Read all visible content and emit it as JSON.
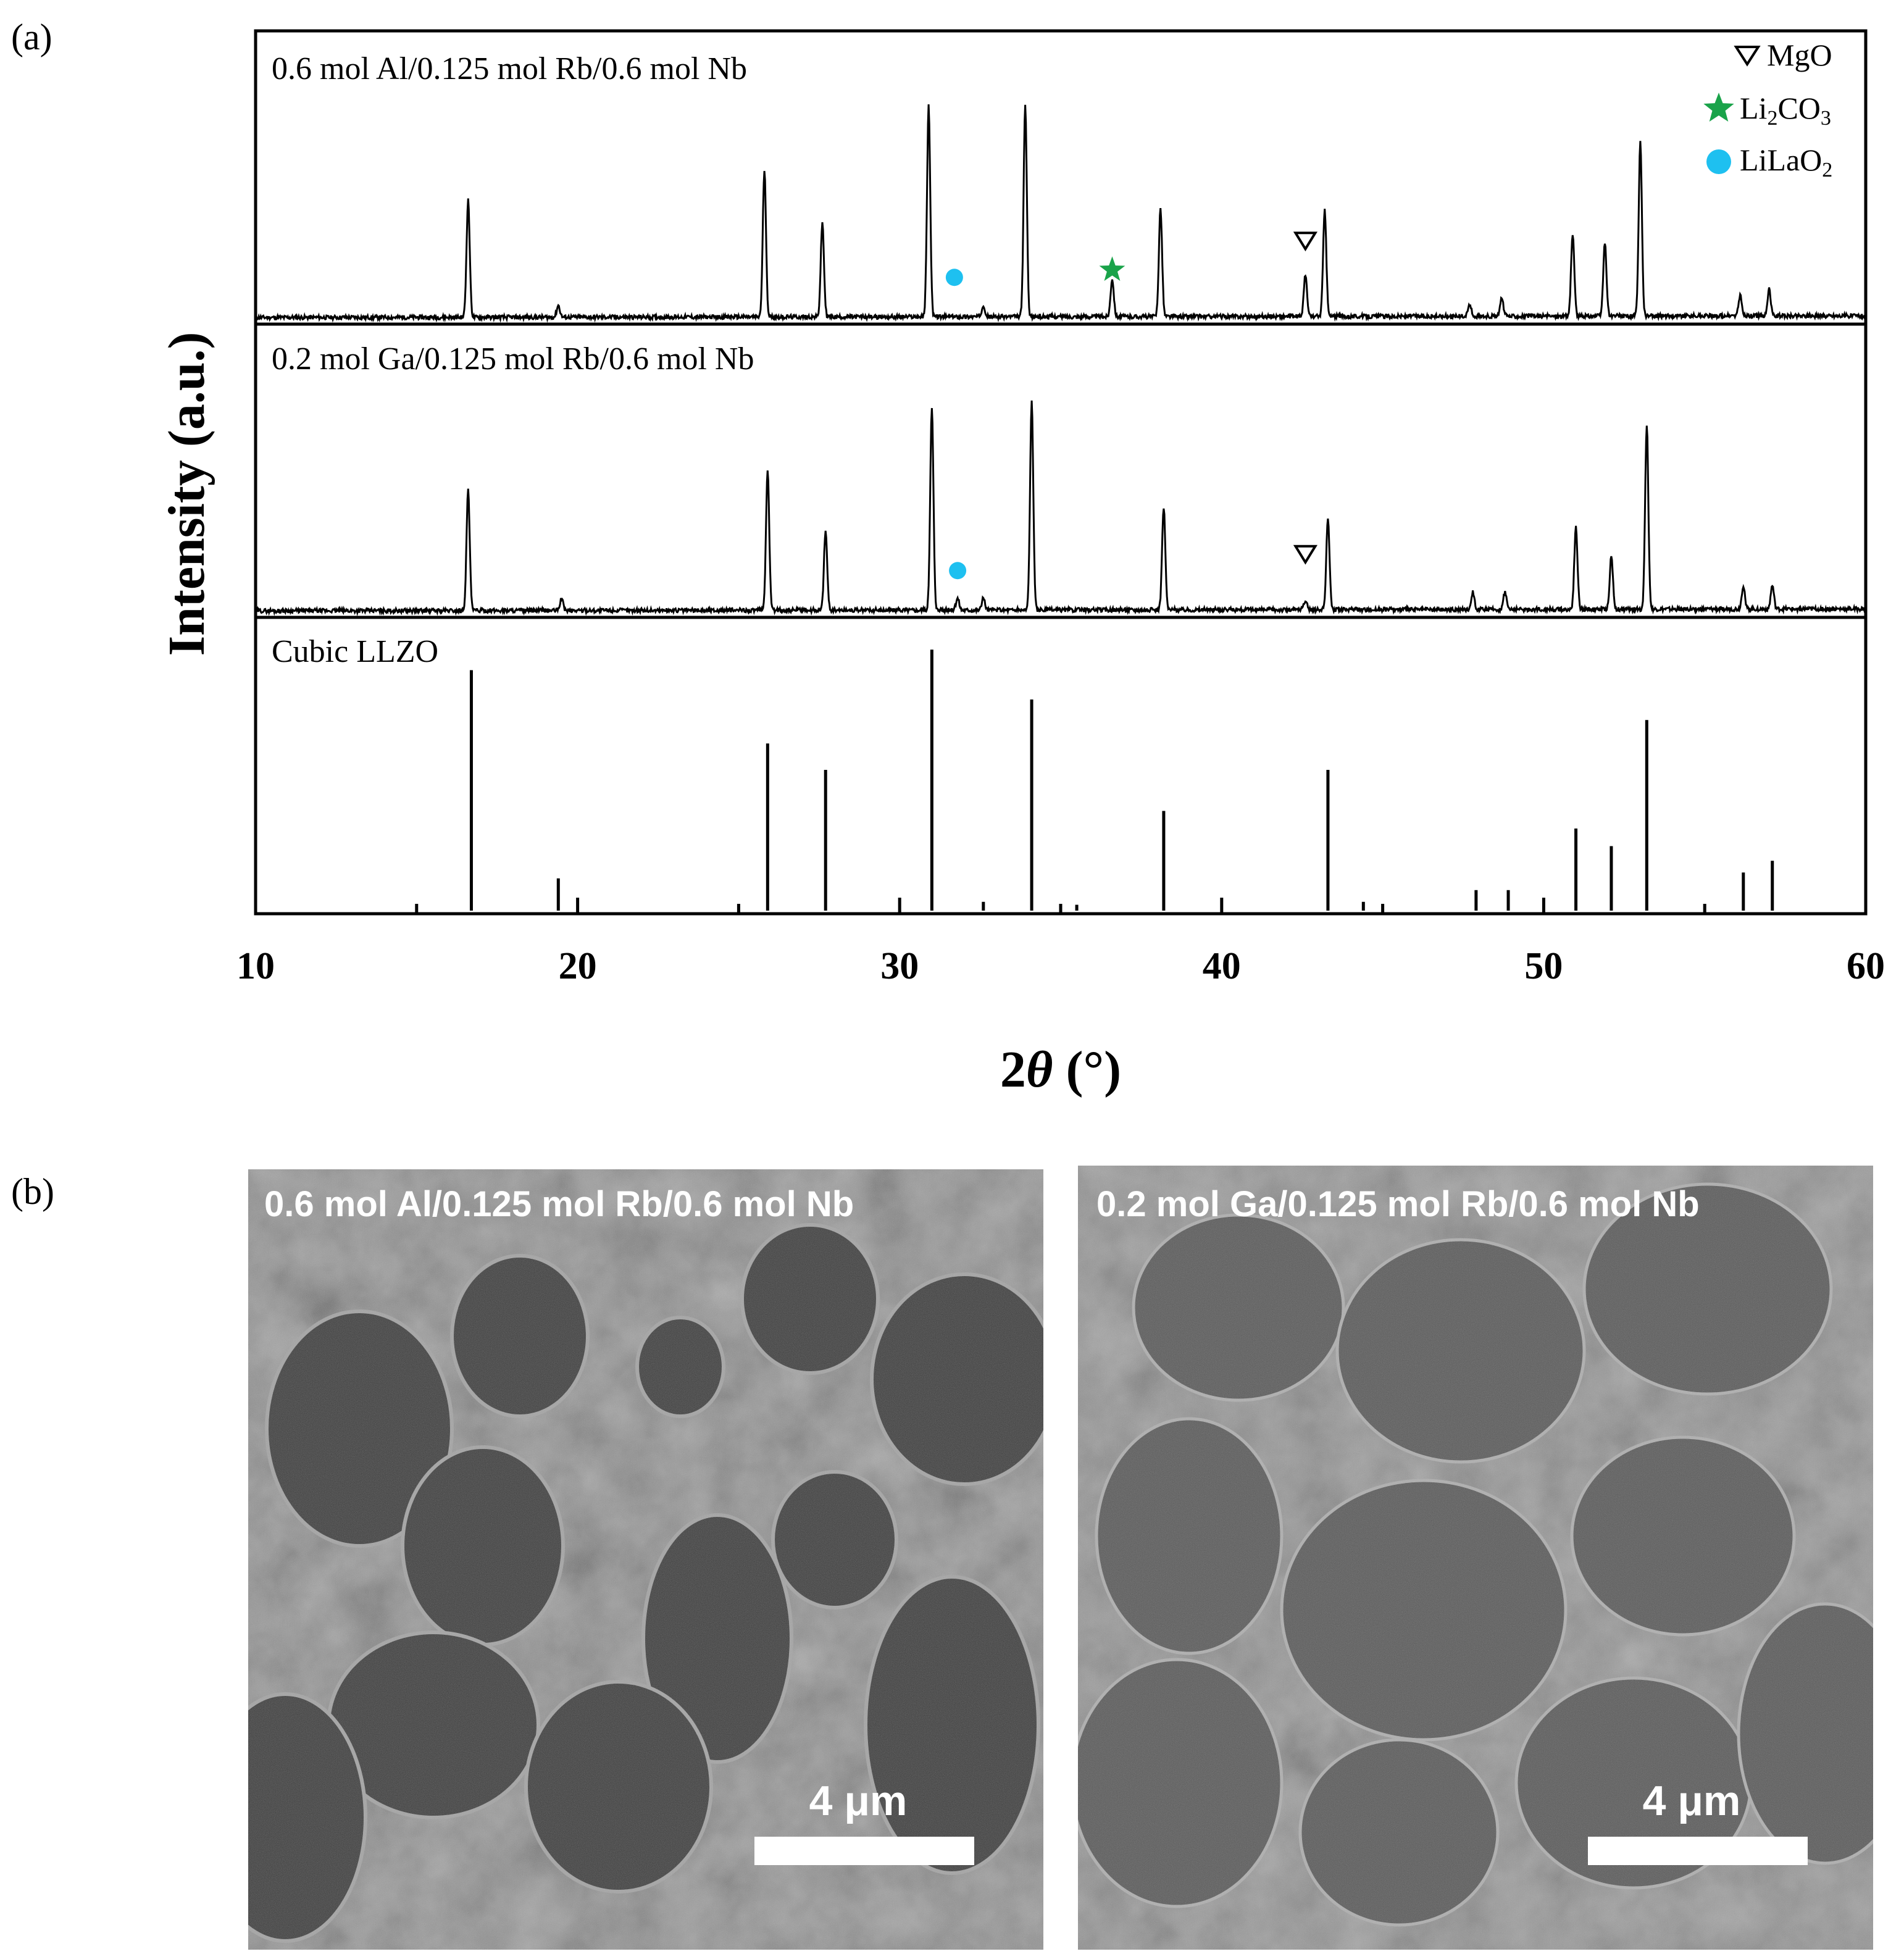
{
  "panel_a_label": "(a)",
  "panel_b_label": "(b)",
  "legend": [
    {
      "symbol": "triangle-down-open",
      "label": "MgO",
      "color": "#000000"
    },
    {
      "symbol": "star",
      "label": "Li2CO3",
      "color": "#1aa34a"
    },
    {
      "symbol": "circle",
      "label": "LiLaO2",
      "color": "#1ec0f0"
    }
  ],
  "chart_data": {
    "type": "line",
    "xlabel": "2θ (°)",
    "ylabel": "Intensity (a.u.)",
    "xlim": [
      10,
      60
    ],
    "xticks": [
      10,
      20,
      30,
      40,
      50,
      60
    ],
    "x_minor_step": 5,
    "stacked": true,
    "series": [
      {
        "name": "0.6 mol Al/0.125 mol Rb/0.6 mol Nb",
        "peaks": [
          {
            "x": 16.6,
            "y": 0.4
          },
          {
            "x": 19.4,
            "y": 0.04
          },
          {
            "x": 25.8,
            "y": 0.5
          },
          {
            "x": 27.6,
            "y": 0.32
          },
          {
            "x": 30.9,
            "y": 0.72
          },
          {
            "x": 32.6,
            "y": 0.04
          },
          {
            "x": 33.9,
            "y": 0.72
          },
          {
            "x": 36.6,
            "y": 0.13
          },
          {
            "x": 38.1,
            "y": 0.37
          },
          {
            "x": 42.6,
            "y": 0.14
          },
          {
            "x": 43.2,
            "y": 0.36
          },
          {
            "x": 47.7,
            "y": 0.04
          },
          {
            "x": 48.7,
            "y": 0.06
          },
          {
            "x": 50.9,
            "y": 0.28
          },
          {
            "x": 51.9,
            "y": 0.25
          },
          {
            "x": 53.0,
            "y": 0.59
          },
          {
            "x": 56.1,
            "y": 0.07
          },
          {
            "x": 57.0,
            "y": 0.09
          }
        ],
        "markers": [
          {
            "phase": "LiLaO2",
            "x": 31.7
          },
          {
            "phase": "Li2CO3",
            "x": 36.6
          },
          {
            "phase": "MgO",
            "x": 42.6
          }
        ]
      },
      {
        "name": "0.2 mol Ga/0.125 mol Rb/0.6 mol Nb",
        "peaks": [
          {
            "x": 16.6,
            "y": 0.41
          },
          {
            "x": 19.5,
            "y": 0.04
          },
          {
            "x": 25.9,
            "y": 0.48
          },
          {
            "x": 27.7,
            "y": 0.27
          },
          {
            "x": 31.0,
            "y": 0.69
          },
          {
            "x": 31.8,
            "y": 0.04
          },
          {
            "x": 32.6,
            "y": 0.04
          },
          {
            "x": 34.1,
            "y": 0.71
          },
          {
            "x": 38.2,
            "y": 0.35
          },
          {
            "x": 42.6,
            "y": 0.03
          },
          {
            "x": 43.3,
            "y": 0.31
          },
          {
            "x": 47.8,
            "y": 0.06
          },
          {
            "x": 48.8,
            "y": 0.06
          },
          {
            "x": 51.0,
            "y": 0.28
          },
          {
            "x": 52.1,
            "y": 0.18
          },
          {
            "x": 53.2,
            "y": 0.63
          },
          {
            "x": 56.2,
            "y": 0.08
          },
          {
            "x": 57.1,
            "y": 0.08
          }
        ],
        "markers": [
          {
            "phase": "LiLaO2",
            "x": 31.8
          },
          {
            "phase": "MgO",
            "x": 42.6
          }
        ]
      },
      {
        "name": "Cubic LLZO",
        "type": "stick",
        "peaks": [
          {
            "x": 16.7,
            "y": 0.82
          },
          {
            "x": 19.4,
            "y": 0.11
          },
          {
            "x": 25.9,
            "y": 0.57
          },
          {
            "x": 27.7,
            "y": 0.48
          },
          {
            "x": 31.0,
            "y": 0.89
          },
          {
            "x": 32.6,
            "y": 0.03
          },
          {
            "x": 34.1,
            "y": 0.72
          },
          {
            "x": 35.5,
            "y": 0.02
          },
          {
            "x": 38.2,
            "y": 0.34
          },
          {
            "x": 43.3,
            "y": 0.48
          },
          {
            "x": 44.4,
            "y": 0.03
          },
          {
            "x": 47.9,
            "y": 0.07
          },
          {
            "x": 48.9,
            "y": 0.07
          },
          {
            "x": 51.0,
            "y": 0.28
          },
          {
            "x": 52.1,
            "y": 0.22
          },
          {
            "x": 53.2,
            "y": 0.65
          },
          {
            "x": 56.2,
            "y": 0.13
          },
          {
            "x": 57.1,
            "y": 0.17
          }
        ]
      }
    ]
  },
  "sem_images": [
    {
      "title": "0.6 mol Al/0.125 mol Rb/0.6 mol Nb",
      "scale_label": "4 μm"
    },
    {
      "title": "0.2 mol Ga/0.125 mol Rb/0.6 mol Nb",
      "scale_label": "4 μm"
    }
  ]
}
